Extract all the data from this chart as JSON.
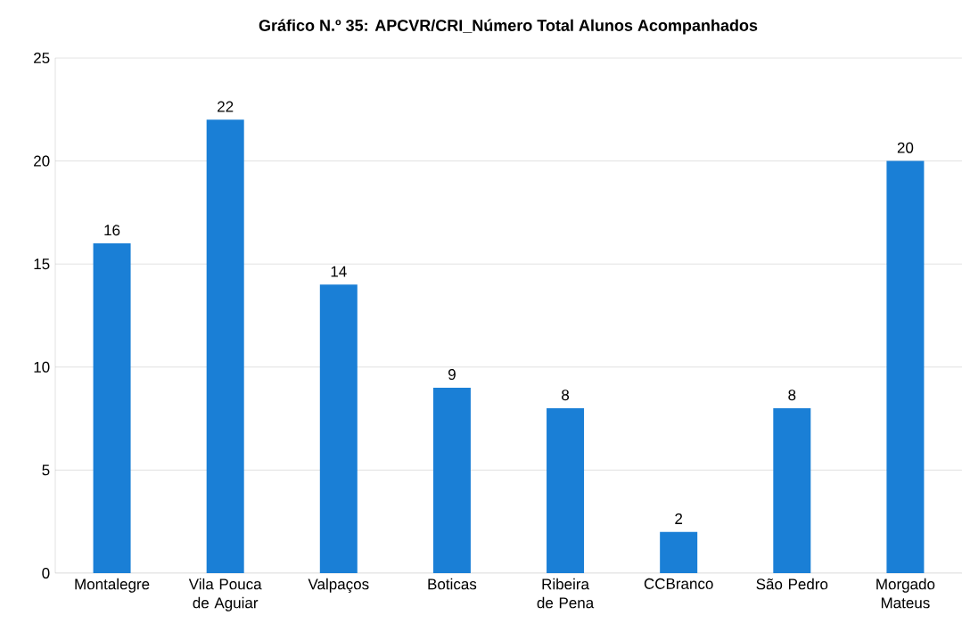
{
  "chart_data": {
    "type": "bar",
    "title": "Gráfico N.º 35: APCVR/CRI_Número Total Alunos Acompanhados",
    "categories": [
      "Montalegre",
      "Vila Pouca de Aguiar",
      "Valpaços",
      "Boticas",
      "Ribeira de Pena",
      "CCBranco",
      "São Pedro",
      "Morgado Mateus"
    ],
    "values": [
      16,
      22,
      14,
      9,
      8,
      2,
      8,
      20
    ],
    "color": "#1a7fd6",
    "ylim": [
      0,
      25
    ],
    "yticks": [
      0,
      5,
      10,
      15,
      20,
      25
    ],
    "grid": "y",
    "data_labels": true
  }
}
